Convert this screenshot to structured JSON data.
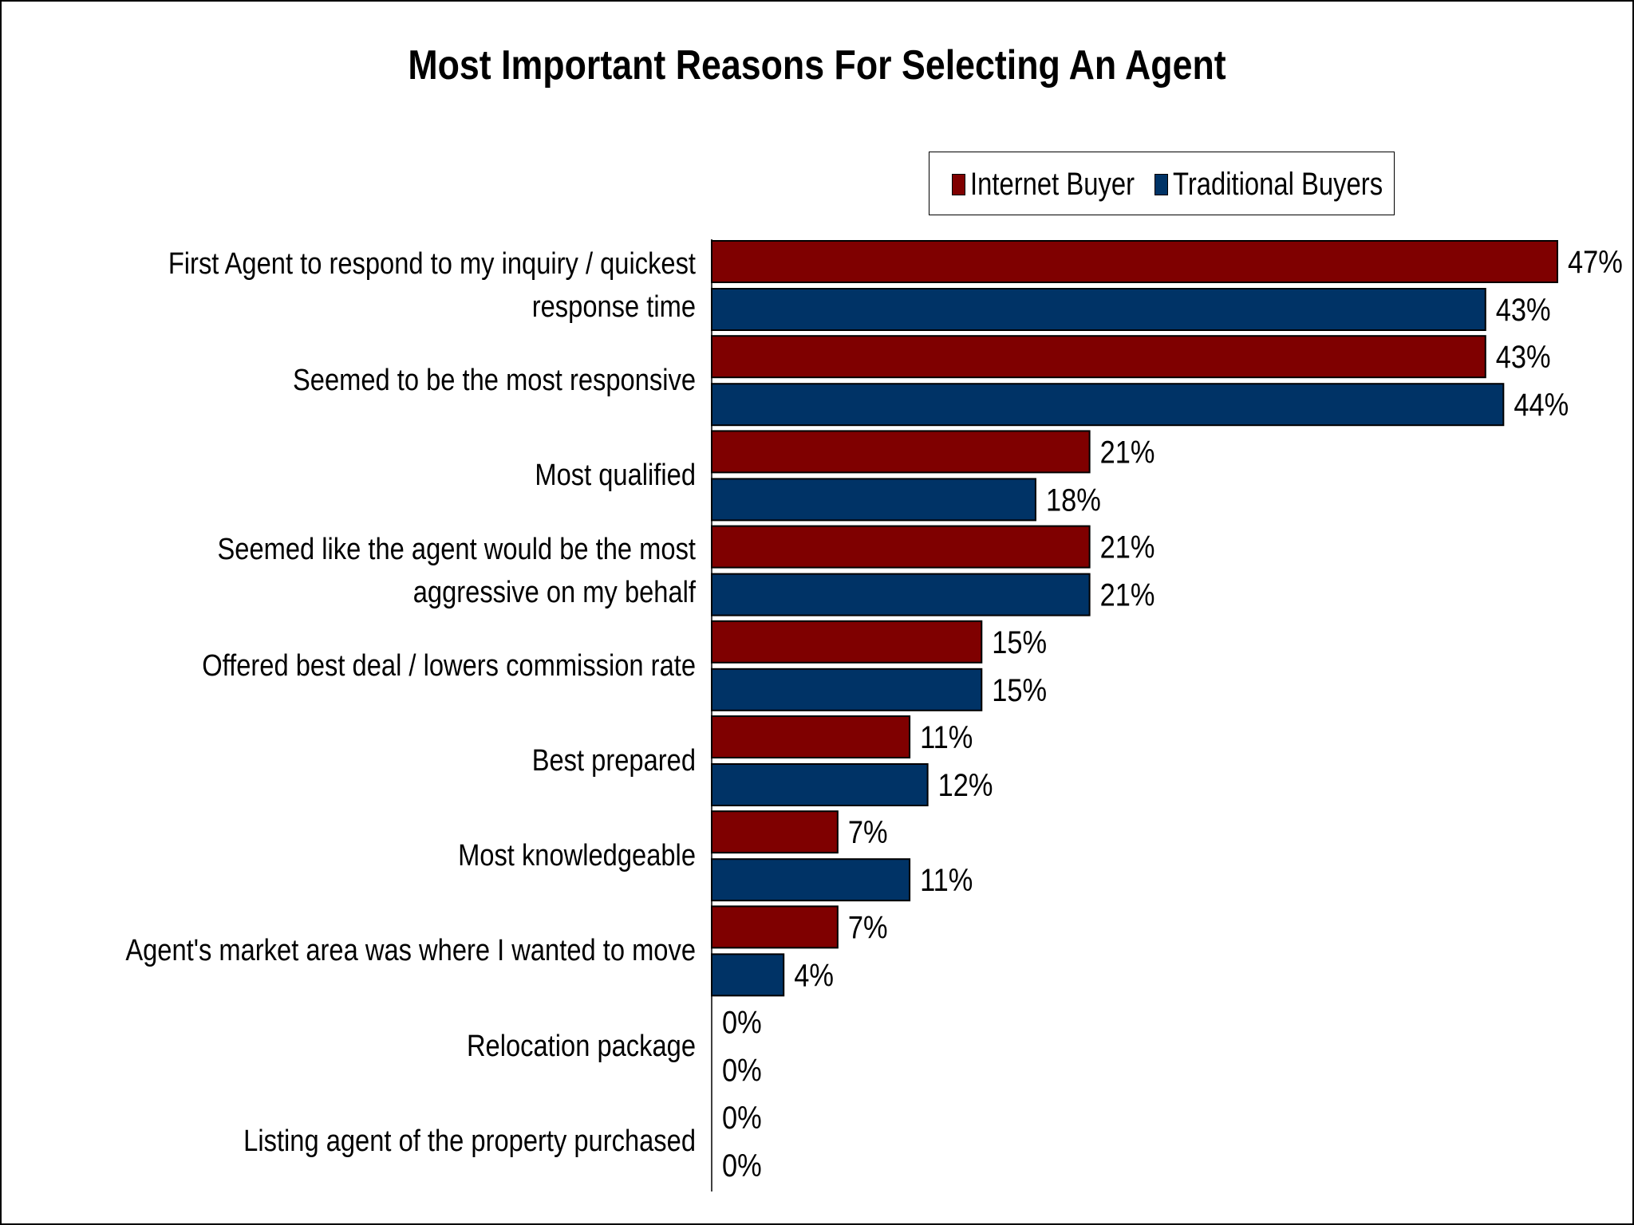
{
  "chart_data": {
    "type": "bar",
    "orientation": "horizontal",
    "title": "Most Important Reasons For Selecting An Agent",
    "categories": [
      "First Agent to respond to my inquiry / quickest response time",
      "Seemed to be the most responsive",
      "Most qualified",
      "Seemed like the agent would be the most aggressive on my behalf",
      "Offered best deal / lowers commission rate",
      "Best prepared",
      "Most knowledgeable",
      "Agent's market area was where I wanted to move",
      "Relocation package",
      "Listing agent of the property purchased"
    ],
    "series": [
      {
        "name": "Internet Buyer",
        "color": "#7f0000",
        "values": [
          47,
          43,
          21,
          21,
          15,
          11,
          7,
          7,
          0,
          0
        ],
        "labels": [
          "47%",
          "43%",
          "21%",
          "21%",
          "15%",
          "11%",
          "7%",
          "7%",
          "0%",
          "0%"
        ]
      },
      {
        "name": "Traditional Buyers",
        "color": "#003366",
        "values": [
          43,
          44,
          18,
          21,
          15,
          12,
          11,
          4,
          0,
          0
        ],
        "labels": [
          "43%",
          "44%",
          "18%",
          "21%",
          "15%",
          "12%",
          "11%",
          "4%",
          "0%",
          "0%"
        ]
      }
    ],
    "unit": "%",
    "xlim": [
      0,
      47
    ],
    "grid": false,
    "legend_position": "top-right"
  }
}
